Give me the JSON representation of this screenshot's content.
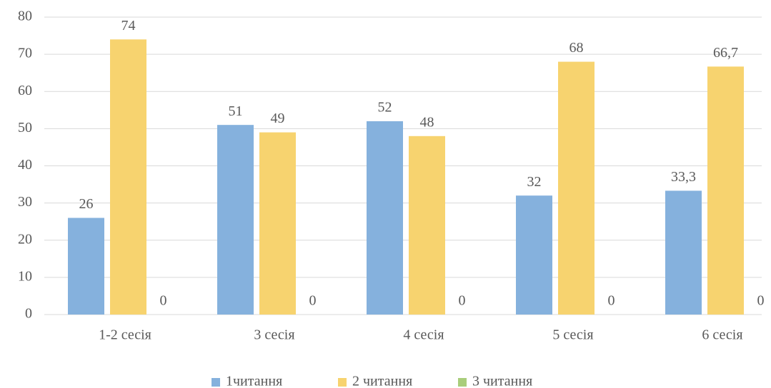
{
  "chart_data": {
    "type": "bar",
    "categories": [
      "1-2 сесія",
      "3 сесія",
      "4 сесія",
      "5 сесія",
      "6 сесія"
    ],
    "series": [
      {
        "name": "1читання",
        "color": "#85b1dd",
        "values": [
          26,
          51,
          52,
          32,
          33.3
        ],
        "value_labels": [
          "26",
          "51",
          "52",
          "32",
          "33,3"
        ]
      },
      {
        "name": "2 читання",
        "color": "#f7d36f",
        "values": [
          74,
          49,
          48,
          68,
          66.7
        ],
        "value_labels": [
          "74",
          "49",
          "48",
          "68",
          "66,7"
        ]
      },
      {
        "name": "3 читання",
        "color": "#a9cd7b",
        "values": [
          0,
          0,
          0,
          0,
          0
        ]
      }
    ],
    "ylim": [
      0,
      80
    ],
    "yticks": [
      0,
      10,
      20,
      30,
      40,
      50,
      60,
      70,
      80
    ],
    "grid": true,
    "legend": "bottom"
  }
}
